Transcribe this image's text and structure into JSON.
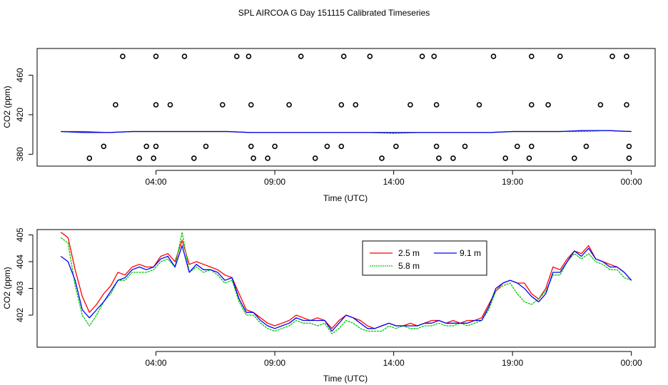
{
  "title": "SPL AIRCOA G  Day 151115  Calibrated Timeseries",
  "chart_data": [
    {
      "type": "scatter",
      "panel": "top",
      "xlabel": "Time (UTC)",
      "ylabel": "CO2 (ppm)",
      "x_tick_labels": [
        "04:00",
        "09:00",
        "14:00",
        "19:00",
        "00:00"
      ],
      "x_tick_hours": [
        4,
        9,
        14,
        19,
        24
      ],
      "xlim_hours": [
        -1.0,
        25.0
      ],
      "y_ticks": [
        380,
        420,
        460
      ],
      "ylim": [
        368,
        487
      ],
      "grid": false,
      "points_hours_ppm": [
        [
          1.2,
          376
        ],
        [
          1.8,
          388
        ],
        [
          2.3,
          430
        ],
        [
          2.6,
          479
        ],
        [
          3.3,
          376
        ],
        [
          3.6,
          388
        ],
        [
          3.9,
          376
        ],
        [
          4.0,
          388
        ],
        [
          4.0,
          430
        ],
        [
          4.0,
          479
        ],
        [
          4.6,
          430
        ],
        [
          5.2,
          479
        ],
        [
          5.6,
          376
        ],
        [
          6.1,
          388
        ],
        [
          6.8,
          430
        ],
        [
          7.4,
          479
        ],
        [
          7.9,
          479
        ],
        [
          8.0,
          430
        ],
        [
          8.0,
          388
        ],
        [
          8.1,
          376
        ],
        [
          8.7,
          376
        ],
        [
          9.0,
          388
        ],
        [
          9.6,
          430
        ],
        [
          10.1,
          479
        ],
        [
          10.7,
          376
        ],
        [
          11.2,
          388
        ],
        [
          11.8,
          388
        ],
        [
          11.8,
          430
        ],
        [
          11.9,
          479
        ],
        [
          12.4,
          430
        ],
        [
          13.0,
          479
        ],
        [
          13.5,
          376
        ],
        [
          14.1,
          388
        ],
        [
          14.7,
          430
        ],
        [
          15.2,
          479
        ],
        [
          15.7,
          479
        ],
        [
          15.8,
          430
        ],
        [
          15.8,
          388
        ],
        [
          15.9,
          376
        ],
        [
          16.5,
          376
        ],
        [
          17.0,
          388
        ],
        [
          17.6,
          430
        ],
        [
          18.2,
          479
        ],
        [
          18.7,
          376
        ],
        [
          19.2,
          388
        ],
        [
          19.7,
          376
        ],
        [
          19.8,
          388
        ],
        [
          19.8,
          430
        ],
        [
          19.8,
          479
        ],
        [
          20.5,
          430
        ],
        [
          21.0,
          479
        ],
        [
          21.6,
          376
        ],
        [
          22.1,
          388
        ],
        [
          22.7,
          430
        ],
        [
          23.2,
          479
        ],
        [
          23.8,
          479
        ],
        [
          23.8,
          430
        ],
        [
          23.9,
          388
        ],
        [
          23.9,
          376
        ]
      ],
      "series": [
        {
          "name": "2.5 m",
          "color": "#ff0000",
          "x_hours": [
            0,
            1,
            2,
            3,
            4,
            5,
            6,
            7,
            8,
            9,
            10,
            11,
            12,
            13,
            14,
            15,
            16,
            17,
            18,
            19,
            20,
            21,
            22,
            23,
            24
          ],
          "values": [
            403,
            403,
            402,
            403,
            403,
            403,
            403,
            403,
            402,
            402,
            402,
            402,
            402,
            402,
            402,
            402,
            402,
            402,
            402,
            403,
            403,
            403,
            404,
            404,
            403
          ]
        },
        {
          "name": "5.8 m",
          "color": "#00cc00",
          "x_hours": [
            0,
            1,
            2,
            3,
            4,
            5,
            6,
            7,
            8,
            9,
            10,
            11,
            12,
            13,
            14,
            15,
            16,
            17,
            18,
            19,
            20,
            21,
            22,
            23,
            24
          ],
          "values": [
            403,
            402,
            402,
            403,
            403,
            403,
            403,
            403,
            402,
            402,
            402,
            402,
            402,
            402,
            401,
            402,
            402,
            402,
            402,
            403,
            403,
            403,
            403,
            404,
            403
          ]
        },
        {
          "name": "9.1 m",
          "color": "#0000ff",
          "x_hours": [
            0,
            1,
            2,
            3,
            4,
            5,
            6,
            7,
            8,
            9,
            10,
            11,
            12,
            13,
            14,
            15,
            16,
            17,
            18,
            19,
            20,
            21,
            22,
            23,
            24
          ],
          "values": [
            403,
            402,
            402,
            403,
            403,
            403,
            403,
            403,
            402,
            402,
            402,
            402,
            402,
            402,
            402,
            402,
            402,
            402,
            402,
            403,
            403,
            403,
            404,
            404,
            403
          ]
        }
      ]
    },
    {
      "type": "line",
      "panel": "bottom",
      "xlabel": "Time (UTC)",
      "ylabel": "CO2 (ppm)",
      "x_tick_labels": [
        "04:00",
        "09:00",
        "14:00",
        "19:00",
        "00:00"
      ],
      "x_tick_hours": [
        4,
        9,
        14,
        19,
        24
      ],
      "xlim_hours": [
        -1.0,
        25.0
      ],
      "y_ticks": [
        402,
        403,
        404,
        405
      ],
      "ylim": [
        400.8,
        405.2
      ],
      "grid": false,
      "legend": "top-center",
      "series": [
        {
          "name": "2.5 m",
          "color": "#ff0000",
          "x_hours": [
            0,
            0.3,
            0.6,
            0.9,
            1.2,
            1.5,
            1.8,
            2.1,
            2.4,
            2.7,
            3.0,
            3.3,
            3.6,
            3.9,
            4.2,
            4.5,
            4.8,
            5.1,
            5.4,
            5.7,
            6.0,
            6.3,
            6.6,
            6.9,
            7.2,
            7.5,
            7.8,
            8.1,
            8.4,
            8.7,
            9.0,
            9.3,
            9.6,
            9.9,
            10.2,
            10.5,
            10.8,
            11.1,
            11.4,
            11.7,
            12.0,
            12.3,
            12.6,
            12.9,
            13.2,
            13.5,
            13.8,
            14.1,
            14.4,
            14.7,
            15.0,
            15.3,
            15.6,
            15.9,
            16.2,
            16.5,
            16.8,
            17.1,
            17.4,
            17.7,
            18.0,
            18.3,
            18.6,
            18.9,
            19.2,
            19.5,
            19.8,
            20.1,
            20.4,
            20.7,
            21.0,
            21.3,
            21.6,
            21.9,
            22.2,
            22.5,
            22.8,
            23.1,
            23.4,
            23.7,
            24.0
          ],
          "values": [
            405.1,
            404.9,
            403.7,
            402.7,
            402.1,
            402.4,
            402.8,
            403.1,
            403.6,
            403.5,
            403.8,
            403.9,
            403.8,
            403.8,
            404.2,
            404.3,
            404.0,
            404.8,
            403.9,
            404.0,
            403.9,
            403.8,
            403.7,
            403.5,
            403.4,
            402.8,
            402.2,
            402.1,
            401.9,
            401.7,
            401.6,
            401.7,
            401.8,
            402.0,
            401.9,
            401.8,
            401.9,
            401.8,
            401.5,
            401.8,
            402.0,
            401.9,
            401.8,
            401.6,
            401.5,
            401.6,
            401.7,
            401.6,
            401.6,
            401.7,
            401.6,
            401.7,
            401.8,
            401.8,
            401.7,
            401.8,
            401.7,
            401.8,
            401.8,
            401.9,
            402.4,
            402.9,
            403.2,
            403.3,
            403.2,
            403.2,
            402.8,
            402.6,
            403.0,
            403.8,
            403.7,
            404.1,
            404.4,
            404.3,
            404.6,
            404.1,
            404.0,
            403.9,
            403.8,
            403.6,
            403.3
          ]
        },
        {
          "name": "5.8 m",
          "color": "#00cc00",
          "x_hours": [
            0,
            0.3,
            0.6,
            0.9,
            1.2,
            1.5,
            1.8,
            2.1,
            2.4,
            2.7,
            3.0,
            3.3,
            3.6,
            3.9,
            4.2,
            4.5,
            4.8,
            5.1,
            5.4,
            5.7,
            6.0,
            6.3,
            6.6,
            6.9,
            7.2,
            7.5,
            7.8,
            8.1,
            8.4,
            8.7,
            9.0,
            9.3,
            9.6,
            9.9,
            10.2,
            10.5,
            10.8,
            11.1,
            11.4,
            11.7,
            12.0,
            12.3,
            12.6,
            12.9,
            13.2,
            13.5,
            13.8,
            14.1,
            14.4,
            14.7,
            15.0,
            15.3,
            15.6,
            15.9,
            16.2,
            16.5,
            16.8,
            17.1,
            17.4,
            17.7,
            18.0,
            18.3,
            18.6,
            18.9,
            19.2,
            19.5,
            19.8,
            20.1,
            20.4,
            20.7,
            21.0,
            21.3,
            21.6,
            21.9,
            22.2,
            22.5,
            22.8,
            23.1,
            23.4,
            23.7,
            24.0
          ],
          "values": [
            404.9,
            404.7,
            403.1,
            402.0,
            401.6,
            402.0,
            402.5,
            402.8,
            403.3,
            403.3,
            403.6,
            403.6,
            403.6,
            403.7,
            404.0,
            404.1,
            403.8,
            405.1,
            403.6,
            403.8,
            403.6,
            403.7,
            403.5,
            403.2,
            403.3,
            402.5,
            402.0,
            402.0,
            401.7,
            401.5,
            401.4,
            401.5,
            401.6,
            401.8,
            401.7,
            401.7,
            401.6,
            401.7,
            401.3,
            401.5,
            401.8,
            401.7,
            401.5,
            401.4,
            401.4,
            401.4,
            401.6,
            401.5,
            401.6,
            401.5,
            401.5,
            401.6,
            401.6,
            401.7,
            401.6,
            401.6,
            401.7,
            401.6,
            401.7,
            401.8,
            402.2,
            402.9,
            403.1,
            403.2,
            402.8,
            402.5,
            402.4,
            402.6,
            402.9,
            403.5,
            403.5,
            404.0,
            404.3,
            404.1,
            404.3,
            404.0,
            403.9,
            403.7,
            403.7,
            403.4,
            403.3
          ]
        },
        {
          "name": "9.1 m",
          "color": "#0000ff",
          "x_hours": [
            0,
            0.3,
            0.6,
            0.9,
            1.2,
            1.5,
            1.8,
            2.1,
            2.4,
            2.7,
            3.0,
            3.3,
            3.6,
            3.9,
            4.2,
            4.5,
            4.8,
            5.1,
            5.4,
            5.7,
            6.0,
            6.3,
            6.6,
            6.9,
            7.2,
            7.5,
            7.8,
            8.1,
            8.4,
            8.7,
            9.0,
            9.3,
            9.6,
            9.9,
            10.2,
            10.5,
            10.8,
            11.1,
            11.4,
            11.7,
            12.0,
            12.3,
            12.6,
            12.9,
            13.2,
            13.5,
            13.8,
            14.1,
            14.4,
            14.7,
            15.0,
            15.3,
            15.6,
            15.9,
            16.2,
            16.5,
            16.8,
            17.1,
            17.4,
            17.7,
            18.0,
            18.3,
            18.6,
            18.9,
            19.2,
            19.5,
            19.8,
            20.1,
            20.4,
            20.7,
            21.0,
            21.3,
            21.6,
            21.9,
            22.2,
            22.5,
            22.8,
            23.1,
            23.4,
            23.7,
            24.0
          ],
          "values": [
            404.2,
            404.0,
            403.3,
            402.2,
            401.9,
            402.2,
            402.5,
            402.9,
            403.3,
            403.4,
            403.7,
            403.8,
            403.7,
            403.8,
            404.1,
            404.2,
            403.8,
            404.6,
            403.6,
            403.9,
            403.7,
            403.7,
            403.6,
            403.3,
            403.4,
            402.6,
            402.1,
            402.1,
            401.8,
            401.6,
            401.5,
            401.6,
            401.7,
            401.9,
            401.8,
            401.8,
            401.8,
            401.8,
            401.4,
            401.7,
            402.0,
            401.9,
            401.7,
            401.5,
            401.5,
            401.6,
            401.7,
            401.6,
            401.6,
            401.6,
            401.6,
            401.7,
            401.7,
            401.8,
            401.7,
            401.7,
            401.7,
            401.7,
            401.8,
            401.8,
            402.3,
            403.0,
            403.2,
            403.3,
            403.2,
            403.0,
            402.7,
            402.5,
            402.8,
            403.6,
            403.6,
            404.0,
            404.4,
            404.2,
            404.5,
            404.1,
            404.0,
            403.8,
            403.8,
            403.6,
            403.3
          ]
        }
      ]
    }
  ]
}
